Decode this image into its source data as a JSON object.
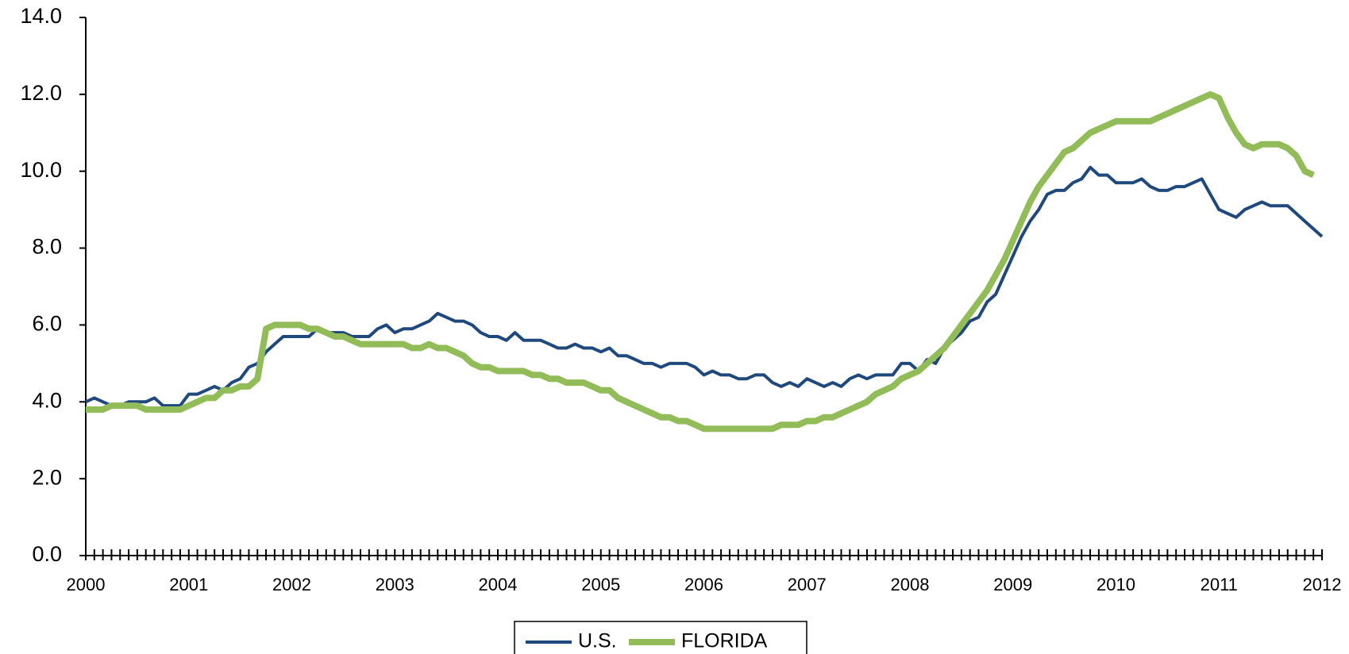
{
  "chart_data": {
    "type": "line",
    "categories": [
      "2000",
      null,
      null,
      null,
      null,
      null,
      null,
      null,
      null,
      null,
      null,
      null,
      "2001",
      null,
      null,
      null,
      null,
      null,
      null,
      null,
      null,
      null,
      null,
      null,
      "2002",
      null,
      null,
      null,
      null,
      null,
      null,
      null,
      null,
      null,
      null,
      null,
      "2003",
      null,
      null,
      null,
      null,
      null,
      null,
      null,
      null,
      null,
      null,
      null,
      "2004",
      null,
      null,
      null,
      null,
      null,
      null,
      null,
      null,
      null,
      null,
      null,
      "2005",
      null,
      null,
      null,
      null,
      null,
      null,
      null,
      null,
      null,
      null,
      null,
      "2006",
      null,
      null,
      null,
      null,
      null,
      null,
      null,
      null,
      null,
      null,
      null,
      "2007",
      null,
      null,
      null,
      null,
      null,
      null,
      null,
      null,
      null,
      null,
      null,
      "2008",
      null,
      null,
      null,
      null,
      null,
      null,
      null,
      null,
      null,
      null,
      null,
      "2009",
      null,
      null,
      null,
      null,
      null,
      null,
      null,
      null,
      null,
      null,
      null,
      "2010",
      null,
      null,
      null,
      null,
      null,
      null,
      null,
      null,
      null,
      null,
      null,
      "2011",
      null,
      null,
      null,
      null,
      null,
      null,
      null,
      null,
      null,
      null,
      null,
      "2012"
    ],
    "series": [
      {
        "name": "U.S.",
        "color": "#1f497d",
        "width": 4,
        "values": [
          4.0,
          4.1,
          4.0,
          3.9,
          3.9,
          4.0,
          4.0,
          4.0,
          4.1,
          3.9,
          3.9,
          3.9,
          4.2,
          4.2,
          4.3,
          4.4,
          4.3,
          4.5,
          4.6,
          4.9,
          5.0,
          5.3,
          5.5,
          5.7,
          5.7,
          5.7,
          5.7,
          5.9,
          5.8,
          5.8,
          5.8,
          5.7,
          5.7,
          5.7,
          5.9,
          6.0,
          5.8,
          5.9,
          5.9,
          6.0,
          6.1,
          6.3,
          6.2,
          6.1,
          6.1,
          6.0,
          5.8,
          5.7,
          5.7,
          5.6,
          5.8,
          5.6,
          5.6,
          5.6,
          5.5,
          5.4,
          5.4,
          5.5,
          5.4,
          5.4,
          5.3,
          5.4,
          5.2,
          5.2,
          5.1,
          5.0,
          5.0,
          4.9,
          5.0,
          5.0,
          5.0,
          4.9,
          4.7,
          4.8,
          4.7,
          4.7,
          4.6,
          4.6,
          4.7,
          4.7,
          4.5,
          4.4,
          4.5,
          4.4,
          4.6,
          4.5,
          4.4,
          4.5,
          4.4,
          4.6,
          4.7,
          4.6,
          4.7,
          4.7,
          4.7,
          5.0,
          5.0,
          4.8,
          5.1,
          5.0,
          5.4,
          5.6,
          5.8,
          6.1,
          6.2,
          6.6,
          6.8,
          7.3,
          7.8,
          8.3,
          8.7,
          9.0,
          9.4,
          9.5,
          9.5,
          9.7,
          9.8,
          10.1,
          9.9,
          9.9,
          9.7,
          9.7,
          9.7,
          9.8,
          9.6,
          9.5,
          9.5,
          9.6,
          9.6,
          9.7,
          9.8,
          9.4,
          9.0,
          8.9,
          8.8,
          9.0,
          9.1,
          9.2,
          9.1,
          9.1,
          9.1,
          8.9,
          8.7,
          8.5,
          8.3
        ]
      },
      {
        "name": "FLORIDA",
        "color": "#92bc58",
        "width": 8,
        "values": [
          3.8,
          3.8,
          3.8,
          3.9,
          3.9,
          3.9,
          3.9,
          3.8,
          3.8,
          3.8,
          3.8,
          3.8,
          3.9,
          4.0,
          4.1,
          4.1,
          4.3,
          4.3,
          4.4,
          4.4,
          4.6,
          5.9,
          6.0,
          6.0,
          6.0,
          6.0,
          5.9,
          5.9,
          5.8,
          5.7,
          5.7,
          5.6,
          5.5,
          5.5,
          5.5,
          5.5,
          5.5,
          5.5,
          5.4,
          5.4,
          5.5,
          5.4,
          5.4,
          5.3,
          5.2,
          5.0,
          4.9,
          4.9,
          4.8,
          4.8,
          4.8,
          4.8,
          4.7,
          4.7,
          4.6,
          4.6,
          4.5,
          4.5,
          4.5,
          4.4,
          4.3,
          4.3,
          4.1,
          4.0,
          3.9,
          3.8,
          3.7,
          3.6,
          3.6,
          3.5,
          3.5,
          3.4,
          3.3,
          3.3,
          3.3,
          3.3,
          3.3,
          3.3,
          3.3,
          3.3,
          3.3,
          3.4,
          3.4,
          3.4,
          3.5,
          3.5,
          3.6,
          3.6,
          3.7,
          3.8,
          3.9,
          4.0,
          4.2,
          4.3,
          4.4,
          4.6,
          4.7,
          4.8,
          5.0,
          5.2,
          5.4,
          5.7,
          6.0,
          6.3,
          6.6,
          6.9,
          7.3,
          7.7,
          8.2,
          8.7,
          9.2,
          9.6,
          9.9,
          10.2,
          10.5,
          10.6,
          10.8,
          11.0,
          11.1,
          11.2,
          11.3,
          11.3,
          11.3,
          11.3,
          11.3,
          11.4,
          11.5,
          11.6,
          11.7,
          11.8,
          11.9,
          12.0,
          11.9,
          11.4,
          11.0,
          10.7,
          10.6,
          10.7,
          10.7,
          10.7,
          10.6,
          10.4,
          10.0,
          9.9,
          null
        ]
      }
    ],
    "ylim": [
      0,
      14
    ],
    "yticks": [
      {
        "value": 0,
        "label": "0.0"
      },
      {
        "value": 2,
        "label": "2.0"
      },
      {
        "value": 4,
        "label": "4.0"
      },
      {
        "value": 6,
        "label": "6.0"
      },
      {
        "value": 8,
        "label": "8.0"
      },
      {
        "value": 10,
        "label": "10.0"
      },
      {
        "value": 12,
        "label": "12.0"
      },
      {
        "value": 14,
        "label": "14.0"
      }
    ],
    "grid": false,
    "legend": "bottom"
  }
}
